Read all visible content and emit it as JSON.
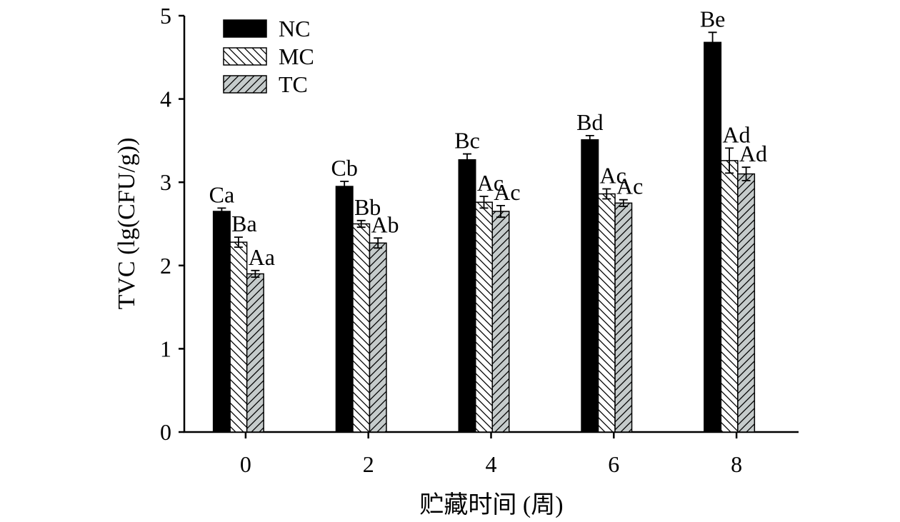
{
  "chart_data": {
    "type": "bar",
    "x_label": "贮藏时间 (周)",
    "y_label": "TVC (lg(CFU/g))",
    "categories": [
      "0",
      "2",
      "4",
      "6",
      "8"
    ],
    "ylim": [
      0,
      5
    ],
    "yticks": [
      0,
      1,
      2,
      3,
      4,
      5
    ],
    "grid": false,
    "legend": "upper left",
    "series": [
      {
        "name": "NC",
        "color": "#000000",
        "hatch": "none",
        "values": [
          2.65,
          2.95,
          3.27,
          3.51,
          4.68
        ],
        "errors": [
          0.04,
          0.06,
          0.07,
          0.05,
          0.12
        ],
        "letters": [
          "Ca",
          "Cb",
          "Bc",
          "Bd",
          "Be"
        ]
      },
      {
        "name": "MC",
        "color": "#ffffff",
        "hatch": "\\",
        "values": [
          2.28,
          2.5,
          2.76,
          2.86,
          3.26
        ],
        "errors": [
          0.06,
          0.04,
          0.07,
          0.06,
          0.15
        ],
        "letters": [
          "Ba",
          "Bb",
          "Ac",
          "Ac",
          "Ad"
        ]
      },
      {
        "name": "TC",
        "color": "#c5cbcb",
        "hatch": "/",
        "values": [
          1.9,
          2.27,
          2.65,
          2.75,
          3.1
        ],
        "errors": [
          0.04,
          0.06,
          0.07,
          0.04,
          0.08
        ],
        "letters": [
          "Aa",
          "Ab",
          "Ac",
          "Ac",
          "Ad"
        ]
      }
    ]
  }
}
